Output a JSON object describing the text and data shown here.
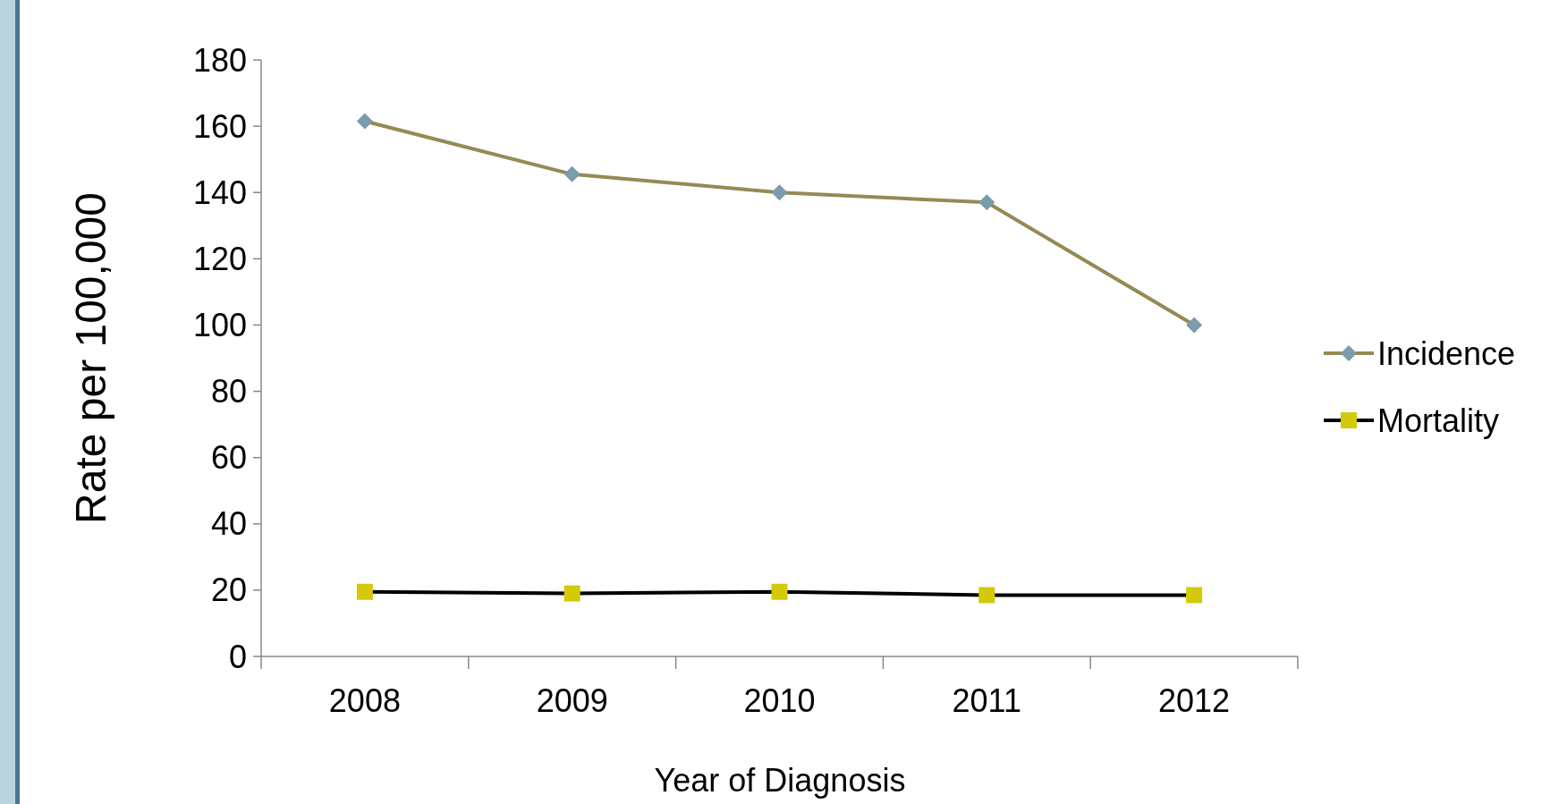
{
  "chart_data": {
    "type": "line",
    "ylabel": "Rate per 100,000",
    "xlabel": "Year of Diagnosis",
    "categories": [
      "2008",
      "2009",
      "2010",
      "2011",
      "2012"
    ],
    "series": [
      {
        "name": "Incidence",
        "color": "#948a54",
        "marker": "diamond",
        "colors": [
          "#7a9cab",
          "#7a9cab",
          "#7a9cab",
          "#7a9cab",
          "#7a9cab"
        ],
        "values": [
          161.5,
          145.5,
          140,
          137,
          100
        ]
      },
      {
        "name": "Mortality",
        "color": "#000000",
        "marker": "square",
        "colors": [
          "#d4c90a",
          "#d4c90a",
          "#d4c90a",
          "#d4c90a",
          "#d4c90a"
        ],
        "values": [
          19.5,
          19,
          19.5,
          18.5,
          18.5
        ]
      }
    ],
    "ylim": [
      0,
      180
    ],
    "yticks": [
      0,
      20,
      40,
      60,
      80,
      100,
      120,
      140,
      160,
      180
    ],
    "grid": false,
    "legend": "right"
  }
}
